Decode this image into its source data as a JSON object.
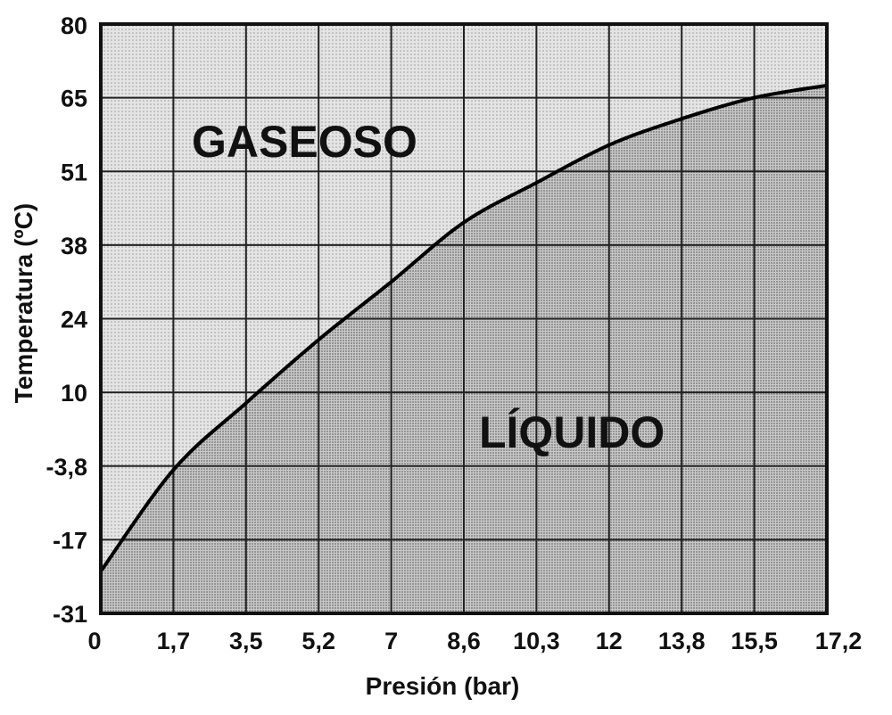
{
  "chart_data": {
    "type": "line",
    "title": "",
    "xlabel": "Presión (bar)",
    "ylabel": "Temperatura (ºC)",
    "x_ticks": [
      "0",
      "1,7",
      "3,5",
      "5,2",
      "7",
      "8,6",
      "10,3",
      "12",
      "13,8",
      "15,5",
      "17,2"
    ],
    "y_ticks": [
      "80",
      "65",
      "51",
      "38",
      "24",
      "10",
      "-3,8",
      "-17",
      "-31"
    ],
    "xlim": [
      0,
      17.2
    ],
    "ylim": [
      -31,
      80
    ],
    "grid": true,
    "regions": [
      {
        "label": "GASEOSO",
        "position": "upper-left"
      },
      {
        "label": "LÍQUIDO",
        "position": "lower-right"
      }
    ],
    "series": [
      {
        "x": [
          0,
          1.7,
          3.5,
          5.2,
          7,
          8.6,
          10.3,
          12,
          13.8,
          15.5,
          17.2
        ],
        "y": [
          -23,
          -4.5,
          8,
          20,
          31,
          42,
          49,
          56,
          61,
          65,
          67.5
        ]
      }
    ],
    "colors": {
      "gas_fill": "#d9d9d9",
      "liquid_fill": "#bdbdbd",
      "line": "#000000"
    }
  }
}
